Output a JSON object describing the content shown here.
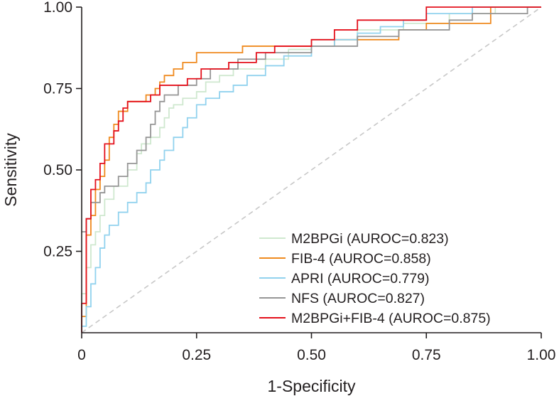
{
  "chart_data": {
    "type": "line",
    "title": "",
    "xlabel": "1-Specificity",
    "ylabel": "Sensitivity",
    "xlim": [
      0,
      1
    ],
    "ylim": [
      0,
      1
    ],
    "xticks": [
      0,
      0.25,
      0.5,
      0.75,
      1.0
    ],
    "yticks": [
      0.25,
      0.5,
      0.75,
      1.0
    ],
    "xtick_labels": [
      "0",
      "0.25",
      "0.50",
      "0.75",
      "1.00"
    ],
    "ytick_labels": [
      "0.25",
      "0.50",
      "0.75",
      "1.00"
    ],
    "grid": false,
    "legend_position": "bottom-right",
    "reference_line": {
      "name": "chance diagonal",
      "color": "#c8c8c8",
      "from": [
        0,
        0
      ],
      "to": [
        1,
        1
      ]
    },
    "series": [
      {
        "name": "M2BPGi (AUROC=0.823)",
        "color": "#cfe8cf",
        "points": [
          [
            0,
            0
          ],
          [
            0,
            0.12
          ],
          [
            0.01,
            0.12
          ],
          [
            0.01,
            0.2
          ],
          [
            0.02,
            0.2
          ],
          [
            0.02,
            0.27
          ],
          [
            0.03,
            0.27
          ],
          [
            0.03,
            0.31
          ],
          [
            0.04,
            0.31
          ],
          [
            0.04,
            0.36
          ],
          [
            0.05,
            0.36
          ],
          [
            0.05,
            0.41
          ],
          [
            0.07,
            0.41
          ],
          [
            0.07,
            0.45
          ],
          [
            0.1,
            0.45
          ],
          [
            0.1,
            0.5
          ],
          [
            0.12,
            0.5
          ],
          [
            0.12,
            0.55
          ],
          [
            0.13,
            0.55
          ],
          [
            0.13,
            0.58
          ],
          [
            0.15,
            0.58
          ],
          [
            0.15,
            0.6
          ],
          [
            0.17,
            0.6
          ],
          [
            0.17,
            0.63
          ],
          [
            0.18,
            0.63
          ],
          [
            0.18,
            0.66
          ],
          [
            0.19,
            0.66
          ],
          [
            0.19,
            0.69
          ],
          [
            0.2,
            0.69
          ],
          [
            0.2,
            0.7
          ],
          [
            0.22,
            0.7
          ],
          [
            0.22,
            0.72
          ],
          [
            0.25,
            0.72
          ],
          [
            0.25,
            0.74
          ],
          [
            0.27,
            0.74
          ],
          [
            0.27,
            0.77
          ],
          [
            0.3,
            0.77
          ],
          [
            0.3,
            0.79
          ],
          [
            0.33,
            0.79
          ],
          [
            0.33,
            0.81
          ],
          [
            0.4,
            0.81
          ],
          [
            0.4,
            0.84
          ],
          [
            0.45,
            0.84
          ],
          [
            0.45,
            0.87
          ],
          [
            0.5,
            0.87
          ],
          [
            0.5,
            0.9
          ],
          [
            0.6,
            0.9
          ],
          [
            0.6,
            0.93
          ],
          [
            0.7,
            0.93
          ],
          [
            0.7,
            0.95
          ],
          [
            0.8,
            0.95
          ],
          [
            0.8,
            0.98
          ],
          [
            0.9,
            0.98
          ],
          [
            0.9,
            1
          ],
          [
            1,
            1
          ]
        ]
      },
      {
        "name": "FIB-4 (AUROC=0.858)",
        "color": "#ef8a1f",
        "points": [
          [
            0,
            0
          ],
          [
            0,
            0.05
          ],
          [
            0.01,
            0.05
          ],
          [
            0.01,
            0.3
          ],
          [
            0.02,
            0.3
          ],
          [
            0.02,
            0.36
          ],
          [
            0.03,
            0.36
          ],
          [
            0.03,
            0.44
          ],
          [
            0.04,
            0.44
          ],
          [
            0.04,
            0.48
          ],
          [
            0.05,
            0.48
          ],
          [
            0.05,
            0.53
          ],
          [
            0.06,
            0.53
          ],
          [
            0.06,
            0.6
          ],
          [
            0.07,
            0.6
          ],
          [
            0.07,
            0.64
          ],
          [
            0.08,
            0.64
          ],
          [
            0.08,
            0.68
          ],
          [
            0.1,
            0.68
          ],
          [
            0.1,
            0.71
          ],
          [
            0.14,
            0.71
          ],
          [
            0.14,
            0.73
          ],
          [
            0.16,
            0.73
          ],
          [
            0.16,
            0.75
          ],
          [
            0.17,
            0.75
          ],
          [
            0.17,
            0.77
          ],
          [
            0.18,
            0.77
          ],
          [
            0.18,
            0.79
          ],
          [
            0.2,
            0.79
          ],
          [
            0.2,
            0.81
          ],
          [
            0.22,
            0.81
          ],
          [
            0.22,
            0.83
          ],
          [
            0.25,
            0.83
          ],
          [
            0.25,
            0.86
          ],
          [
            0.35,
            0.86
          ],
          [
            0.35,
            0.88
          ],
          [
            0.55,
            0.88
          ],
          [
            0.55,
            0.9
          ],
          [
            0.69,
            0.9
          ],
          [
            0.69,
            0.93
          ],
          [
            0.75,
            0.93
          ],
          [
            0.75,
            0.95
          ],
          [
            0.89,
            0.95
          ],
          [
            0.89,
            1
          ],
          [
            1,
            1
          ]
        ]
      },
      {
        "name": "APRI (AUROC=0.779)",
        "color": "#91d2ee",
        "points": [
          [
            0,
            0
          ],
          [
            0,
            0.02
          ],
          [
            0.01,
            0.02
          ],
          [
            0.01,
            0.08
          ],
          [
            0.02,
            0.08
          ],
          [
            0.02,
            0.15
          ],
          [
            0.03,
            0.15
          ],
          [
            0.03,
            0.2
          ],
          [
            0.04,
            0.2
          ],
          [
            0.04,
            0.26
          ],
          [
            0.05,
            0.26
          ],
          [
            0.05,
            0.3
          ],
          [
            0.06,
            0.3
          ],
          [
            0.06,
            0.33
          ],
          [
            0.08,
            0.33
          ],
          [
            0.08,
            0.37
          ],
          [
            0.1,
            0.37
          ],
          [
            0.1,
            0.4
          ],
          [
            0.12,
            0.4
          ],
          [
            0.12,
            0.43
          ],
          [
            0.14,
            0.43
          ],
          [
            0.14,
            0.46
          ],
          [
            0.15,
            0.46
          ],
          [
            0.15,
            0.5
          ],
          [
            0.17,
            0.5
          ],
          [
            0.17,
            0.53
          ],
          [
            0.18,
            0.53
          ],
          [
            0.18,
            0.56
          ],
          [
            0.2,
            0.56
          ],
          [
            0.2,
            0.6
          ],
          [
            0.22,
            0.6
          ],
          [
            0.22,
            0.63
          ],
          [
            0.23,
            0.63
          ],
          [
            0.23,
            0.66
          ],
          [
            0.25,
            0.66
          ],
          [
            0.25,
            0.7
          ],
          [
            0.27,
            0.7
          ],
          [
            0.27,
            0.72
          ],
          [
            0.3,
            0.72
          ],
          [
            0.3,
            0.74
          ],
          [
            0.33,
            0.74
          ],
          [
            0.33,
            0.76
          ],
          [
            0.36,
            0.76
          ],
          [
            0.36,
            0.79
          ],
          [
            0.4,
            0.79
          ],
          [
            0.4,
            0.82
          ],
          [
            0.44,
            0.82
          ],
          [
            0.44,
            0.85
          ],
          [
            0.5,
            0.85
          ],
          [
            0.5,
            0.88
          ],
          [
            0.55,
            0.88
          ],
          [
            0.55,
            0.9
          ],
          [
            0.6,
            0.9
          ],
          [
            0.6,
            0.92
          ],
          [
            0.65,
            0.92
          ],
          [
            0.65,
            0.94
          ],
          [
            0.7,
            0.94
          ],
          [
            0.7,
            0.96
          ],
          [
            0.75,
            0.96
          ],
          [
            0.75,
            0.98
          ],
          [
            0.85,
            0.98
          ],
          [
            0.85,
            1
          ],
          [
            1,
            1
          ]
        ]
      },
      {
        "name": "NFS (AUROC=0.827)",
        "color": "#969696",
        "points": [
          [
            0,
            0.31
          ],
          [
            0.01,
            0.31
          ],
          [
            0.01,
            0.35
          ],
          [
            0.02,
            0.35
          ],
          [
            0.02,
            0.4
          ],
          [
            0.04,
            0.4
          ],
          [
            0.04,
            0.43
          ],
          [
            0.05,
            0.43
          ],
          [
            0.05,
            0.45
          ],
          [
            0.08,
            0.45
          ],
          [
            0.08,
            0.48
          ],
          [
            0.1,
            0.48
          ],
          [
            0.1,
            0.52
          ],
          [
            0.12,
            0.52
          ],
          [
            0.12,
            0.56
          ],
          [
            0.14,
            0.56
          ],
          [
            0.14,
            0.6
          ],
          [
            0.15,
            0.6
          ],
          [
            0.15,
            0.64
          ],
          [
            0.16,
            0.64
          ],
          [
            0.16,
            0.68
          ],
          [
            0.17,
            0.68
          ],
          [
            0.17,
            0.71
          ],
          [
            0.18,
            0.71
          ],
          [
            0.18,
            0.73
          ],
          [
            0.21,
            0.73
          ],
          [
            0.21,
            0.76
          ],
          [
            0.25,
            0.76
          ],
          [
            0.25,
            0.78
          ],
          [
            0.28,
            0.78
          ],
          [
            0.28,
            0.81
          ],
          [
            0.34,
            0.81
          ],
          [
            0.34,
            0.84
          ],
          [
            0.4,
            0.84
          ],
          [
            0.4,
            0.86
          ],
          [
            0.5,
            0.86
          ],
          [
            0.5,
            0.88
          ],
          [
            0.6,
            0.88
          ],
          [
            0.6,
            0.91
          ],
          [
            0.69,
            0.91
          ],
          [
            0.69,
            0.93
          ],
          [
            0.8,
            0.93
          ],
          [
            0.8,
            0.96
          ],
          [
            0.85,
            0.96
          ],
          [
            0.85,
            0.98
          ],
          [
            0.97,
            0.98
          ],
          [
            0.97,
            1
          ],
          [
            1,
            1
          ]
        ]
      },
      {
        "name": "M2BPGi+FIB-4 (AUROC=0.875)",
        "color": "#e4111c",
        "points": [
          [
            0,
            0
          ],
          [
            0,
            0.09
          ],
          [
            0.01,
            0.09
          ],
          [
            0.01,
            0.35
          ],
          [
            0.02,
            0.35
          ],
          [
            0.02,
            0.44
          ],
          [
            0.03,
            0.44
          ],
          [
            0.03,
            0.47
          ],
          [
            0.04,
            0.47
          ],
          [
            0.04,
            0.52
          ],
          [
            0.05,
            0.52
          ],
          [
            0.05,
            0.58
          ],
          [
            0.07,
            0.58
          ],
          [
            0.07,
            0.62
          ],
          [
            0.08,
            0.62
          ],
          [
            0.08,
            0.65
          ],
          [
            0.09,
            0.65
          ],
          [
            0.09,
            0.69
          ],
          [
            0.1,
            0.69
          ],
          [
            0.1,
            0.71
          ],
          [
            0.15,
            0.71
          ],
          [
            0.15,
            0.73
          ],
          [
            0.17,
            0.73
          ],
          [
            0.17,
            0.76
          ],
          [
            0.23,
            0.76
          ],
          [
            0.23,
            0.78
          ],
          [
            0.26,
            0.78
          ],
          [
            0.26,
            0.81
          ],
          [
            0.32,
            0.81
          ],
          [
            0.32,
            0.83
          ],
          [
            0.38,
            0.83
          ],
          [
            0.38,
            0.86
          ],
          [
            0.42,
            0.86
          ],
          [
            0.42,
            0.88
          ],
          [
            0.5,
            0.88
          ],
          [
            0.5,
            0.9
          ],
          [
            0.55,
            0.9
          ],
          [
            0.55,
            0.93
          ],
          [
            0.6,
            0.93
          ],
          [
            0.6,
            0.96
          ],
          [
            0.75,
            0.96
          ],
          [
            0.75,
            1
          ],
          [
            1,
            1
          ]
        ]
      }
    ]
  }
}
